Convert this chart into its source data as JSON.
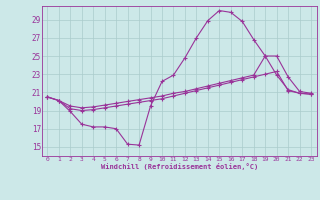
{
  "xlabel": "Windchill (Refroidissement éolien,°C)",
  "bg_color": "#cce8e8",
  "line_color": "#993399",
  "grid_color": "#aacccc",
  "xticks": [
    0,
    1,
    2,
    3,
    4,
    5,
    6,
    7,
    8,
    9,
    10,
    11,
    12,
    13,
    14,
    15,
    16,
    17,
    18,
    19,
    20,
    21,
    22,
    23
  ],
  "yticks": [
    15,
    17,
    19,
    21,
    23,
    25,
    27,
    29
  ],
  "ylim": [
    14.0,
    30.5
  ],
  "xlim": [
    -0.5,
    23.5
  ],
  "series": [
    {
      "x": [
        0,
        1,
        2,
        3,
        4,
        5,
        6,
        7,
        8,
        9,
        10,
        11,
        12,
        13,
        14,
        15,
        16,
        17,
        18,
        19,
        20,
        21,
        22,
        23
      ],
      "y": [
        20.5,
        20.1,
        18.9,
        17.5,
        17.2,
        17.2,
        17.0,
        15.3,
        15.2,
        19.5,
        22.2,
        22.9,
        24.8,
        27.0,
        28.9,
        30.0,
        29.8,
        28.8,
        26.8,
        25.0,
        22.9,
        21.3,
        20.9,
        20.8
      ]
    },
    {
      "x": [
        0,
        1,
        2,
        3,
        4,
        5,
        6,
        7,
        8,
        9,
        10,
        11,
        12,
        13,
        14,
        15,
        16,
        17,
        18,
        19,
        20,
        21,
        22,
        23
      ],
      "y": [
        20.5,
        20.1,
        19.2,
        19.0,
        19.1,
        19.3,
        19.5,
        19.7,
        19.9,
        20.1,
        20.3,
        20.6,
        20.9,
        21.2,
        21.5,
        21.8,
        22.1,
        22.4,
        22.7,
        23.0,
        23.3,
        21.2,
        20.9,
        20.8
      ]
    },
    {
      "x": [
        0,
        1,
        2,
        3,
        4,
        5,
        6,
        7,
        8,
        9,
        10,
        11,
        12,
        13,
        14,
        15,
        16,
        17,
        18,
        19,
        20,
        21,
        22,
        23
      ],
      "y": [
        20.5,
        20.1,
        19.5,
        19.3,
        19.4,
        19.6,
        19.8,
        20.0,
        20.2,
        20.4,
        20.6,
        20.9,
        21.1,
        21.4,
        21.7,
        22.0,
        22.3,
        22.6,
        22.9,
        25.0,
        25.0,
        22.7,
        21.1,
        20.9
      ]
    }
  ]
}
